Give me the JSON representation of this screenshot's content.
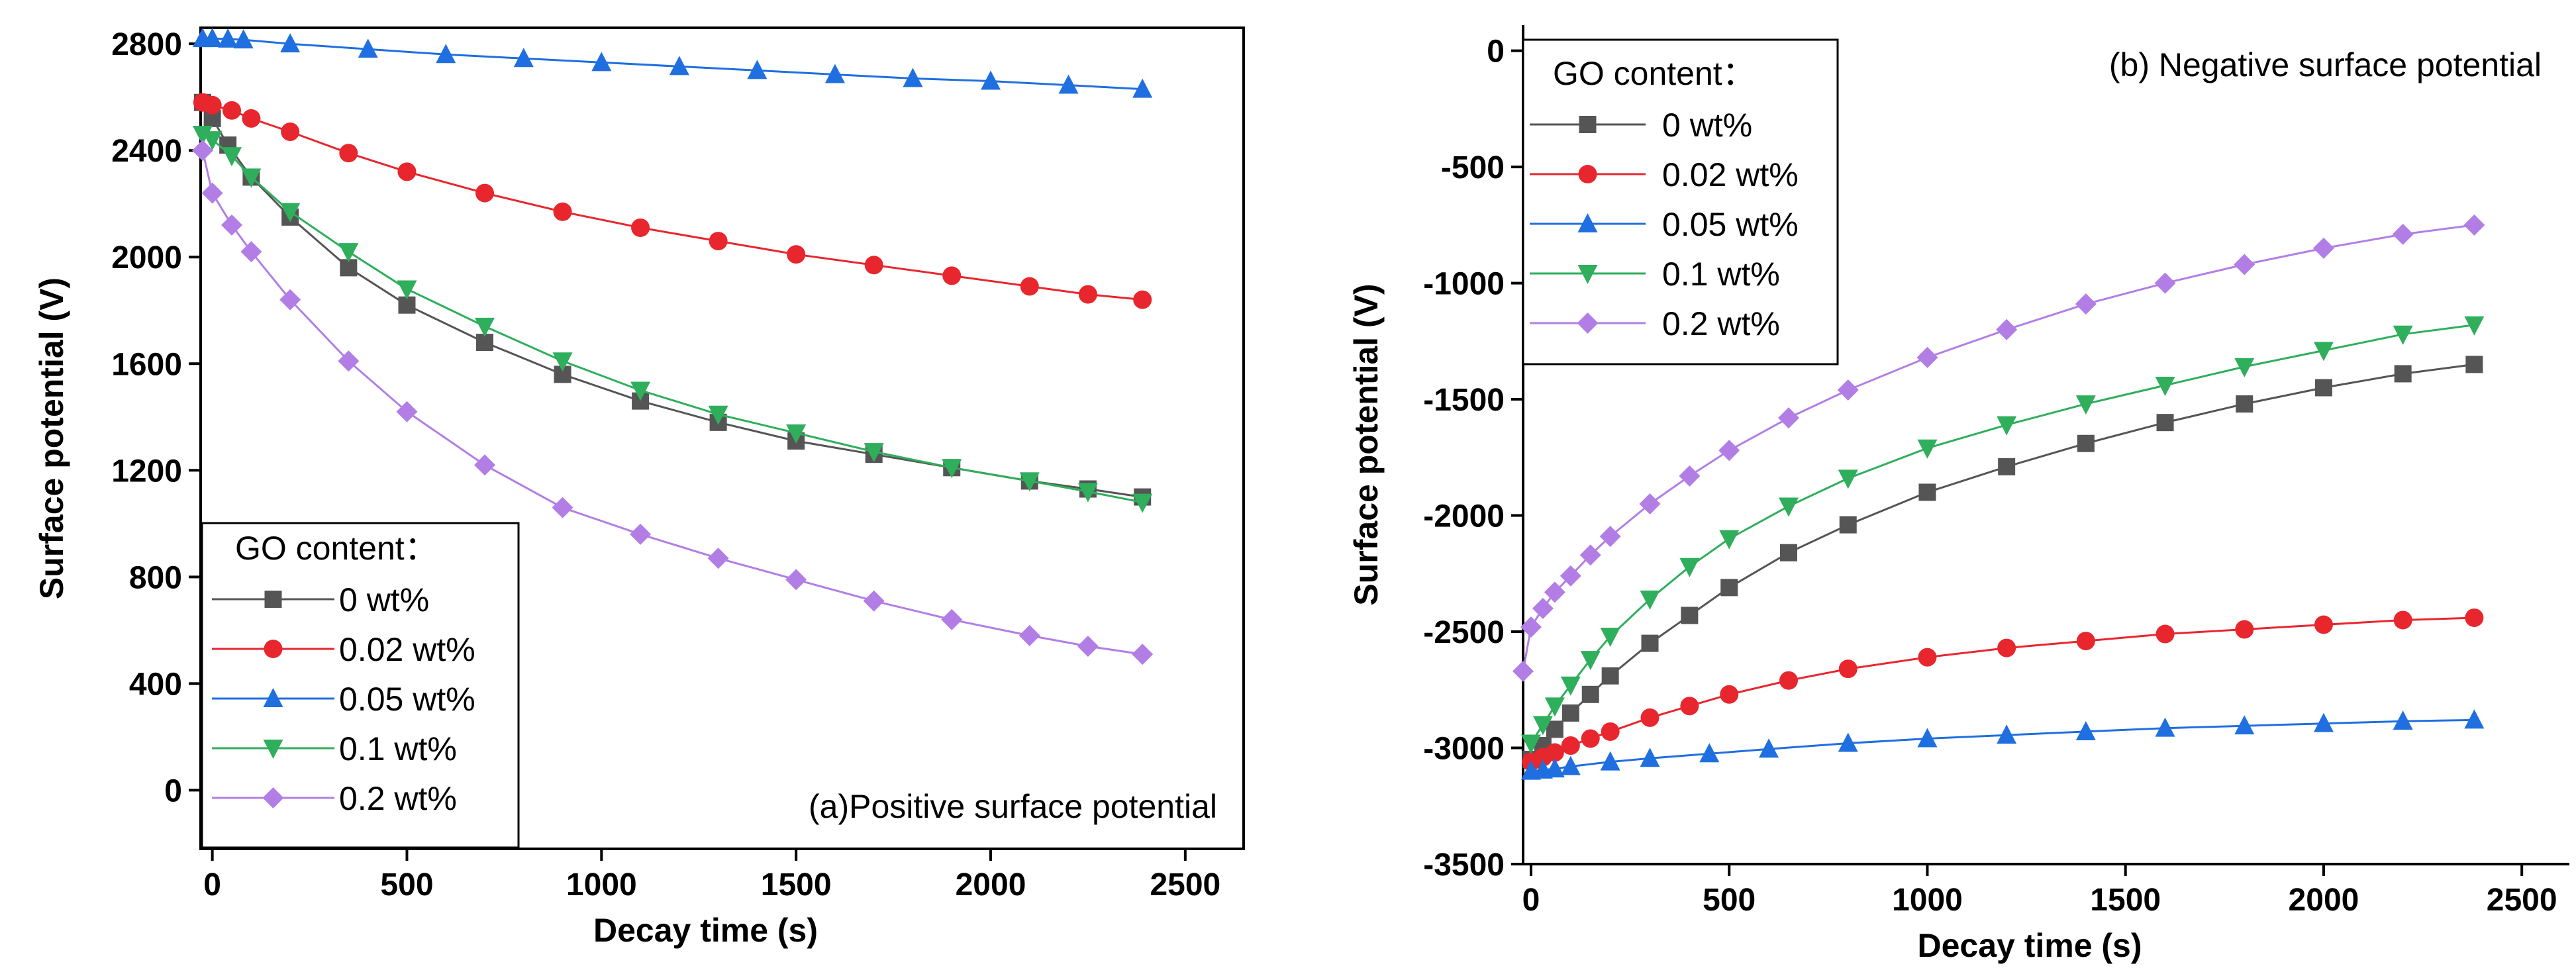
{
  "chart_data": [
    {
      "type": "line",
      "title": "",
      "panel_label": "(a)Positive surface potential",
      "xlabel": "Decay time (s)",
      "ylabel": "Surface potential (V)",
      "xlim": [
        -30,
        2650
      ],
      "ylim": [
        -220,
        2860
      ],
      "xticks": [
        0,
        500,
        1000,
        1500,
        2000,
        2500
      ],
      "yticks": [
        0,
        400,
        800,
        1200,
        1600,
        2000,
        2400,
        2800
      ],
      "xtick_labels": [
        "0",
        "500",
        "1000",
        "1500",
        "2000",
        "2500"
      ],
      "ytick_labels": [
        "0",
        "400",
        "800",
        "1200",
        "1600",
        "2000",
        "2400",
        "2800"
      ],
      "legend": {
        "title": "GO content：",
        "position": "bottom-left"
      },
      "series": [
        {
          "name": "0 wt%",
          "color": "#555555",
          "marker": "square",
          "x": [
            -25,
            0,
            40,
            100,
            200,
            350,
            500,
            700,
            900,
            1100,
            1300,
            1500,
            1700,
            1900,
            2100,
            2250,
            2390
          ],
          "y": [
            2580,
            2520,
            2420,
            2300,
            2150,
            1960,
            1820,
            1680,
            1560,
            1460,
            1380,
            1310,
            1260,
            1210,
            1160,
            1130,
            1100
          ]
        },
        {
          "name": "0.02 wt%",
          "color": "#e8262e",
          "marker": "circle",
          "x": [
            -25,
            0,
            50,
            100,
            200,
            350,
            500,
            700,
            900,
            1100,
            1300,
            1500,
            1700,
            1900,
            2100,
            2250,
            2390
          ],
          "y": [
            2580,
            2570,
            2550,
            2520,
            2470,
            2390,
            2320,
            2240,
            2170,
            2110,
            2060,
            2010,
            1970,
            1930,
            1890,
            1860,
            1840
          ]
        },
        {
          "name": "0.05 wt%",
          "color": "#1f6fe0",
          "marker": "triangle-up",
          "x": [
            -25,
            0,
            40,
            80,
            200,
            400,
            600,
            800,
            1000,
            1200,
            1400,
            1600,
            1800,
            2000,
            2200,
            2390
          ],
          "y": [
            2820,
            2820,
            2818,
            2815,
            2800,
            2780,
            2760,
            2745,
            2730,
            2715,
            2700,
            2685,
            2670,
            2660,
            2645,
            2630
          ]
        },
        {
          "name": "0.1 wt%",
          "color": "#2fae5c",
          "marker": "triangle-down",
          "x": [
            -25,
            0,
            50,
            100,
            200,
            350,
            500,
            700,
            900,
            1100,
            1300,
            1500,
            1700,
            1900,
            2100,
            2250,
            2390
          ],
          "y": [
            2460,
            2440,
            2380,
            2300,
            2170,
            2020,
            1880,
            1740,
            1610,
            1500,
            1410,
            1340,
            1270,
            1210,
            1160,
            1120,
            1080
          ]
        },
        {
          "name": "0.2 wt%",
          "color": "#b27ee6",
          "marker": "diamond",
          "x": [
            -25,
            0,
            50,
            100,
            200,
            350,
            500,
            700,
            900,
            1100,
            1300,
            1500,
            1700,
            1900,
            2100,
            2250,
            2390
          ],
          "y": [
            2400,
            2240,
            2120,
            2020,
            1840,
            1610,
            1420,
            1220,
            1060,
            960,
            870,
            790,
            710,
            640,
            580,
            540,
            510
          ]
        }
      ]
    },
    {
      "type": "line",
      "title": "",
      "panel_label": "(b) Negative surface potential",
      "xlabel": "Decay time (s)",
      "ylabel": "Surface potential (V)",
      "xlim": [
        -20,
        2620
      ],
      "ylim": [
        -3500,
        110
      ],
      "xticks": [
        0,
        500,
        1000,
        1500,
        2000,
        2500
      ],
      "yticks": [
        -3500,
        -3000,
        -2500,
        -2000,
        -1500,
        -1000,
        -500,
        0
      ],
      "xtick_labels": [
        "0",
        "500",
        "1000",
        "1500",
        "2000",
        "2500"
      ],
      "ytick_labels": [
        "-3500",
        "-3000",
        "-2500",
        "-2000",
        "-1500",
        "-1000",
        "-500",
        "0"
      ],
      "legend": {
        "title": "GO content：",
        "position": "top-left"
      },
      "series": [
        {
          "name": "0 wt%",
          "color": "#555555",
          "marker": "square",
          "x": [
            0,
            30,
            60,
            100,
            150,
            200,
            300,
            400,
            500,
            650,
            800,
            1000,
            1200,
            1400,
            1600,
            1800,
            2000,
            2200,
            2380
          ],
          "y": [
            -3050,
            -2990,
            -2920,
            -2850,
            -2770,
            -2690,
            -2550,
            -2430,
            -2310,
            -2160,
            -2040,
            -1900,
            -1790,
            -1690,
            -1600,
            -1520,
            -1450,
            -1390,
            -1350
          ]
        },
        {
          "name": "0.02 wt%",
          "color": "#e8262e",
          "marker": "circle",
          "x": [
            0,
            30,
            60,
            100,
            150,
            200,
            300,
            400,
            500,
            650,
            800,
            1000,
            1200,
            1400,
            1600,
            1800,
            2000,
            2200,
            2380
          ],
          "y": [
            -3060,
            -3040,
            -3020,
            -2990,
            -2960,
            -2930,
            -2870,
            -2820,
            -2770,
            -2710,
            -2660,
            -2610,
            -2570,
            -2540,
            -2510,
            -2490,
            -2470,
            -2450,
            -2440
          ]
        },
        {
          "name": "0.05 wt%",
          "color": "#1f6fe0",
          "marker": "triangle-up",
          "x": [
            0,
            30,
            60,
            100,
            200,
            300,
            450,
            600,
            800,
            1000,
            1200,
            1400,
            1600,
            1800,
            2000,
            2200,
            2380
          ],
          "y": [
            -3100,
            -3095,
            -3090,
            -3080,
            -3060,
            -3045,
            -3025,
            -3005,
            -2980,
            -2960,
            -2945,
            -2930,
            -2915,
            -2905,
            -2895,
            -2885,
            -2880
          ]
        },
        {
          "name": "0.1 wt%",
          "color": "#2fae5c",
          "marker": "triangle-down",
          "x": [
            0,
            30,
            60,
            100,
            150,
            200,
            300,
            400,
            500,
            650,
            800,
            1000,
            1200,
            1400,
            1600,
            1800,
            2000,
            2200,
            2380
          ],
          "y": [
            -2980,
            -2900,
            -2820,
            -2730,
            -2620,
            -2520,
            -2360,
            -2220,
            -2100,
            -1960,
            -1840,
            -1710,
            -1610,
            -1520,
            -1440,
            -1360,
            -1290,
            -1220,
            -1180
          ]
        },
        {
          "name": "0.2 wt%",
          "color": "#b27ee6",
          "marker": "diamond",
          "x": [
            -20,
            0,
            30,
            60,
            100,
            150,
            200,
            300,
            400,
            500,
            650,
            800,
            1000,
            1200,
            1400,
            1600,
            1800,
            2000,
            2200,
            2380
          ],
          "y": [
            -2670,
            -2480,
            -2400,
            -2330,
            -2260,
            -2170,
            -2090,
            -1950,
            -1830,
            -1720,
            -1580,
            -1460,
            -1320,
            -1200,
            -1090,
            -1000,
            -920,
            -850,
            -790,
            -750
          ]
        }
      ]
    }
  ]
}
